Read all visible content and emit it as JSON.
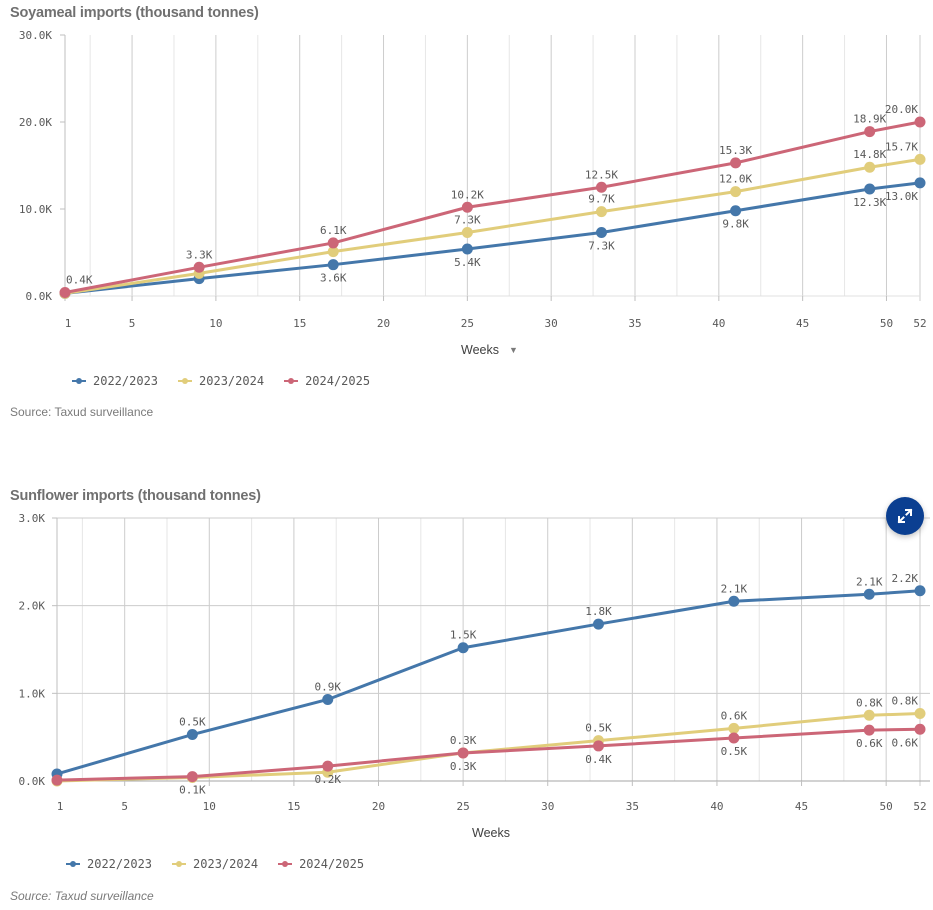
{
  "colors": {
    "series_2022_2023": "#4477aa",
    "series_2023_2024": "#e1cd7b",
    "series_2024_2025": "#cc6677",
    "grid": "#d9d9d9",
    "grid_major": "#cccccc",
    "expand_button": "#0b3f91"
  },
  "expand_button": {
    "icon": "expand-arrows-icon"
  },
  "chart_data": [
    {
      "type": "line",
      "title": "Soyameal imports (thousand tonnes)",
      "xlabel": "Weeks",
      "xlabel_has_dropdown": true,
      "ylabel": "",
      "x": [
        1,
        9,
        17,
        25,
        33,
        41,
        49,
        52
      ],
      "xlim": [
        1,
        52
      ],
      "xticks": [
        "1",
        "5",
        "10",
        "15",
        "20",
        "25",
        "30",
        "35",
        "40",
        "45",
        "50",
        "52"
      ],
      "ylim": [
        0,
        30
      ],
      "yticks": [
        "0.0K",
        "10.0K",
        "20.0K",
        "30.0K"
      ],
      "grid": "vertical",
      "legend_position": "bottom-left",
      "series": [
        {
          "name": "2022/2023",
          "values": [
            0.3,
            2.0,
            3.6,
            5.4,
            7.3,
            9.8,
            12.3,
            13.0
          ],
          "labels": [
            "",
            "",
            "3.6K",
            "5.4K",
            "7.3K",
            "9.8K",
            "12.3K",
            "13.0K"
          ],
          "label_pos": "below"
        },
        {
          "name": "2023/2024",
          "values": [
            0.3,
            2.6,
            5.1,
            7.3,
            9.7,
            12.0,
            14.8,
            15.7
          ],
          "labels": [
            "",
            "",
            "",
            "7.3K",
            "9.7K",
            "12.0K",
            "14.8K",
            "15.7K"
          ],
          "label_pos": "above"
        },
        {
          "name": "2024/2025",
          "values": [
            0.4,
            3.3,
            6.1,
            10.2,
            12.5,
            15.3,
            18.9,
            20.0
          ],
          "labels": [
            "0.4K",
            "3.3K",
            "6.1K",
            "10.2K",
            "12.5K",
            "15.3K",
            "18.9K",
            "20.0K"
          ],
          "label_pos": "above"
        }
      ],
      "source": "Source: Taxud surveillance"
    },
    {
      "type": "line",
      "title": "Sunflower imports (thousand tonnes)",
      "xlabel": "Weeks",
      "xlabel_has_dropdown": false,
      "ylabel": "",
      "x": [
        1,
        9,
        17,
        25,
        33,
        41,
        49,
        52
      ],
      "xlim": [
        1,
        52
      ],
      "xticks": [
        "1",
        "5",
        "10",
        "15",
        "20",
        "25",
        "30",
        "35",
        "40",
        "45",
        "50",
        "52"
      ],
      "ylim": [
        0,
        3
      ],
      "yticks": [
        "0.0K",
        "1.0K",
        "2.0K",
        "3.0K"
      ],
      "grid": "both",
      "legend_position": "bottom-left",
      "series": [
        {
          "name": "2022/2023",
          "values": [
            0.08,
            0.53,
            0.93,
            1.52,
            1.79,
            2.05,
            2.13,
            2.17
          ],
          "labels": [
            "",
            "0.5K",
            "0.9K",
            "1.5K",
            "1.8K",
            "2.1K",
            "2.1K",
            "2.2K"
          ],
          "label_pos": "above"
        },
        {
          "name": "2023/2024",
          "values": [
            0.0,
            0.04,
            0.1,
            0.32,
            0.46,
            0.6,
            0.75,
            0.77
          ],
          "labels": [
            "",
            "",
            "",
            "0.3K",
            "0.5K",
            "0.6K",
            "0.8K",
            "0.8K"
          ],
          "label_pos": "above"
        },
        {
          "name": "2024/2025",
          "values": [
            0.01,
            0.05,
            0.17,
            0.32,
            0.4,
            0.49,
            0.58,
            0.59
          ],
          "labels": [
            "",
            "0.1K",
            "0.2K",
            "0.3K",
            "0.4K",
            "0.5K",
            "0.6K",
            "0.6K"
          ],
          "label_pos": "below"
        }
      ],
      "source": "Source: Taxud surveillance"
    }
  ]
}
